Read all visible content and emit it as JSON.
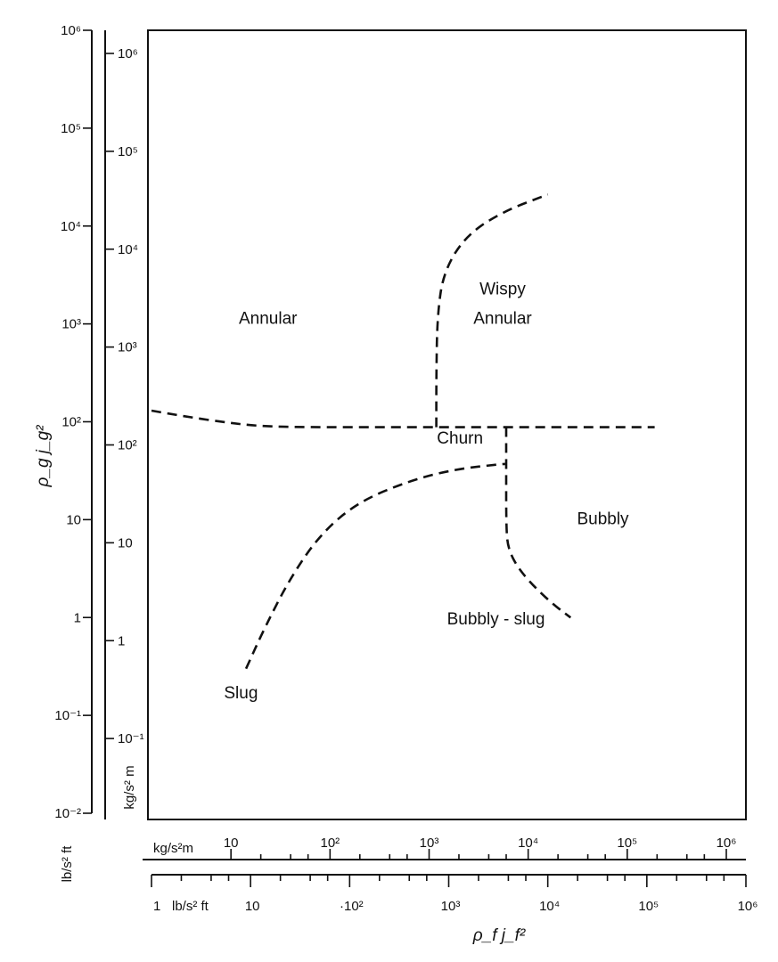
{
  "chart_data": {
    "type": "line",
    "x_axis": {
      "title": "ρ_f j_f²",
      "scale": "log",
      "outer_scale": {
        "unit": "lb/s² ft",
        "range": [
          1,
          1000000
        ],
        "ticks": [
          {
            "value": 1,
            "label": "1"
          },
          {
            "value": 10,
            "label": "10"
          },
          {
            "value": 100,
            "label": "·10²"
          },
          {
            "value": 1000,
            "label": "10³"
          },
          {
            "value": 10000,
            "label": "10⁴"
          },
          {
            "value": 100000,
            "label": "10⁵"
          },
          {
            "value": 1000000,
            "label": "10⁶"
          }
        ]
      },
      "inner_scale": {
        "unit": "kg/s²m",
        "ticks": [
          {
            "value": 10,
            "label": "10"
          },
          {
            "value": 100,
            "label": "10²"
          },
          {
            "value": 1000,
            "label": "10³"
          },
          {
            "value": 10000,
            "label": "10⁴"
          },
          {
            "value": 100000,
            "label": "10⁵"
          },
          {
            "value": 1000000,
            "label": "10⁶"
          }
        ]
      }
    },
    "y_axis": {
      "title": "ρ_g j_g²",
      "scale": "log",
      "outer_scale": {
        "unit": "lb/s² ft",
        "range": [
          0.01,
          1000000
        ],
        "ticks": [
          {
            "value": 0.01,
            "label": "10⁻²"
          },
          {
            "value": 0.1,
            "label": "10⁻¹"
          },
          {
            "value": 1,
            "label": "1"
          },
          {
            "value": 10,
            "label": "10"
          },
          {
            "value": 100,
            "label": "10²"
          },
          {
            "value": 1000,
            "label": "10³"
          },
          {
            "value": 10000,
            "label": "10⁴"
          },
          {
            "value": 100000,
            "label": "10⁵"
          },
          {
            "value": 1000000,
            "label": "10⁶"
          }
        ]
      },
      "inner_scale": {
        "unit": "kg/s² m",
        "ticks": [
          {
            "value": 0.1,
            "label": "10⁻¹"
          },
          {
            "value": 1,
            "label": "1"
          },
          {
            "value": 10,
            "label": "10"
          },
          {
            "value": 100,
            "label": "10²"
          },
          {
            "value": 1000,
            "label": "10³"
          },
          {
            "value": 10000,
            "label": "10⁴"
          },
          {
            "value": 100000,
            "label": "10⁵"
          },
          {
            "value": 1000000,
            "label": "10⁶"
          }
        ]
      }
    },
    "grid": false,
    "regions": [
      {
        "label": "Annular",
        "x": 15,
        "y": 1000
      },
      {
        "label": "Wispy",
        "x": 3500,
        "y": 2000
      },
      {
        "label": "Annular",
        "x": 3500,
        "y": 1000
      },
      {
        "label": "Churn",
        "x": 1300,
        "y": 60
      },
      {
        "label": "Bubbly",
        "x": 36000,
        "y": 9
      },
      {
        "label": "Bubbly - slug",
        "x": 3000,
        "y": 0.85
      },
      {
        "label": "Slug",
        "x": 8,
        "y": 0.15
      }
    ],
    "boundaries": [
      {
        "id": "upper-horizontal",
        "x": [
          1,
          2,
          5,
          12,
          40,
          200,
          1000,
          5000,
          30000,
          120000
        ],
        "y": [
          130,
          115,
          100,
          90,
          88,
          88,
          88,
          88,
          88,
          88
        ]
      },
      {
        "id": "annular-wispy",
        "x": [
          750,
          750,
          770,
          900,
          1500,
          3500,
          10000
        ],
        "y": [
          88,
          300,
          1300,
          3500,
          8000,
          14000,
          21000
        ]
      },
      {
        "id": "slug-churn",
        "x": [
          9,
          14,
          25,
          50,
          120,
          400,
          1200,
          3500,
          3800
        ],
        "y": [
          0.3,
          0.8,
          2.5,
          7,
          15,
          25,
          33,
          37,
          37
        ]
      },
      {
        "id": "churn-bubbly",
        "x": [
          3800,
          3800,
          3800,
          4000,
          5000,
          7500,
          12000,
          17000
        ],
        "y": [
          88,
          37,
          8,
          5,
          3.2,
          2,
          1.3,
          1
        ]
      }
    ]
  }
}
